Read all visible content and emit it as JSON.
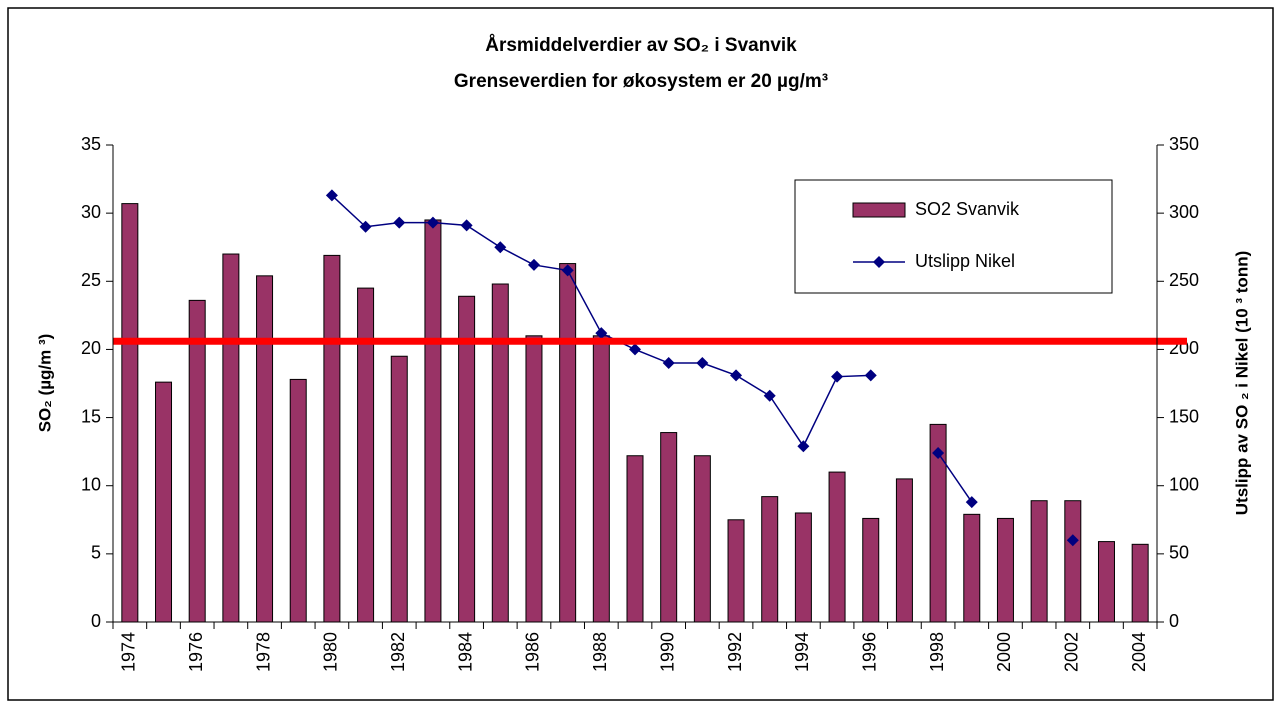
{
  "chart_data": {
    "type": "bar",
    "title": "Årsmiddelverdier av SO₂ i Svanvik",
    "subtitle": "Grenseverdien for økosystem er 20 µg/m³",
    "y_label": "SO₂ (µg/m ³)",
    "y2_label": "Utslipp av SO ₂ i Nikel (10 ³ tonn)",
    "categories": [
      "1974",
      null,
      "1976",
      null,
      "1978",
      null,
      "1980",
      null,
      "1982",
      null,
      "1984",
      null,
      "1986",
      null,
      "1988",
      null,
      "1990",
      null,
      "1992",
      null,
      "1994",
      null,
      "1996",
      null,
      "1998",
      null,
      "2000",
      null,
      "2002",
      null,
      "2004"
    ],
    "series": [
      {
        "name": "SO2 Svanvik",
        "type": "bar",
        "color": "#993366",
        "values": [
          30.7,
          17.6,
          23.6,
          27.0,
          25.4,
          17.8,
          26.9,
          24.5,
          19.5,
          29.5,
          23.9,
          24.8,
          21.0,
          26.3,
          21.0,
          12.2,
          13.9,
          12.2,
          7.5,
          9.2,
          8.0,
          11.0,
          7.6,
          10.5,
          14.5,
          7.9,
          7.6,
          8.9,
          8.9,
          5.9,
          5.7
        ]
      },
      {
        "name": "Utslipp Nikel",
        "type": "line",
        "axis": "y2",
        "color": "#000080",
        "values": [
          null,
          null,
          null,
          null,
          null,
          null,
          313,
          290,
          293,
          293,
          291,
          275,
          262,
          258,
          212,
          200,
          190,
          190,
          181,
          166,
          129,
          180,
          181,
          null,
          124,
          88,
          null,
          null,
          60,
          null,
          null
        ]
      }
    ],
    "reference_line": {
      "value": 20.6,
      "color": "#ff0000"
    },
    "ylim": [
      0,
      35
    ],
    "yticks": [
      0,
      5,
      10,
      15,
      20,
      25,
      30,
      35
    ],
    "y2lim": [
      0,
      350
    ],
    "y2ticks": [
      0,
      50,
      100,
      150,
      200,
      250,
      300,
      350
    ],
    "legend": "upper right"
  }
}
